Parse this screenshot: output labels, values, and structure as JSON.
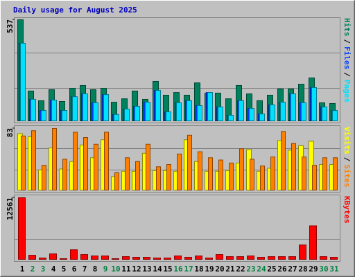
{
  "title": "Daily usage for August 2025",
  "legend_separator": "/",
  "chart_data": [
    {
      "type": "bar",
      "ylim": [
        0,
        537
      ],
      "yticks": [
        537
      ],
      "series": [
        {
          "name": "Hits",
          "color": "#00805c",
          "values": [
            537,
            161,
            110,
            168,
            106,
            175,
            190,
            168,
            175,
            102,
            120,
            161,
            117,
            212,
            139,
            153,
            139,
            204,
            150,
            150,
            120,
            190,
            146,
            110,
            139,
            172,
            172,
            197,
            230,
            99,
            95
          ]
        },
        {
          "name": "Files",
          "color": "#0040ff",
          "values": [
            413,
            117,
            58,
            113,
            58,
            131,
            146,
            99,
            142,
            37,
            66,
            80,
            102,
            164,
            51,
            99,
            110,
            84,
            153,
            77,
            33,
            110,
            69,
            40,
            88,
            102,
            146,
            99,
            179,
            77,
            58
          ]
        },
        {
          "name": "Pages",
          "color": "#00e0ff",
          "values": [
            413,
            117,
            58,
            113,
            58,
            131,
            146,
            99,
            142,
            37,
            66,
            80,
            102,
            164,
            51,
            99,
            110,
            84,
            153,
            77,
            33,
            110,
            69,
            40,
            88,
            102,
            146,
            99,
            179,
            77,
            58
          ]
        }
      ]
    },
    {
      "type": "bar",
      "ylim": [
        0,
        83
      ],
      "yticks": [
        83
      ],
      "series": [
        {
          "name": "Visits",
          "color": "#ffff00",
          "values": [
            76,
            72,
            28,
            57,
            29,
            39,
            61,
            44,
            68,
            19,
            26,
            26,
            50,
            27,
            27,
            26,
            68,
            39,
            26,
            26,
            27,
            37,
            55,
            26,
            30,
            67,
            54,
            60,
            66,
            35,
            35
          ]
        },
        {
          "name": "Sites",
          "color": "#ff8000",
          "values": [
            73,
            80,
            34,
            83,
            42,
            78,
            71,
            62,
            78,
            24,
            44,
            39,
            62,
            32,
            35,
            49,
            74,
            52,
            44,
            41,
            37,
            56,
            42,
            33,
            45,
            79,
            63,
            45,
            34,
            44,
            44
          ]
        }
      ]
    },
    {
      "type": "bar",
      "ylim": [
        0,
        12561
      ],
      "yticks": [
        12561
      ],
      "categories": [
        "1",
        "2",
        "3",
        "4",
        "5",
        "6",
        "7",
        "8",
        "9",
        "10",
        "11",
        "12",
        "13",
        "14",
        "15",
        "16",
        "17",
        "18",
        "19",
        "20",
        "21",
        "22",
        "23",
        "24",
        "25",
        "26",
        "27",
        "28",
        "29",
        "30",
        "31"
      ],
      "label_colors": [
        "#000000",
        "#008040",
        "#008040",
        "#000000",
        "#000000",
        "#000000",
        "#000000",
        "#000000",
        "#008040",
        "#008040",
        "#000000",
        "#000000",
        "#000000",
        "#000000",
        "#000000",
        "#008040",
        "#008040",
        "#000000",
        "#000000",
        "#000000",
        "#000000",
        "#000000",
        "#008040",
        "#008040",
        "#000000",
        "#000000",
        "#000000",
        "#000000",
        "#000000",
        "#008040",
        "#008040"
      ],
      "series": [
        {
          "name": "KBytes",
          "color": "#ff0000",
          "values": [
            12561,
            966,
            414,
            1242,
            276,
            2070,
            1104,
            828,
            828,
            276,
            690,
            552,
            552,
            414,
            414,
            828,
            552,
            828,
            414,
            1104,
            690,
            690,
            828,
            552,
            690,
            690,
            690,
            3037,
            6902,
            690,
            552
          ]
        }
      ]
    }
  ]
}
